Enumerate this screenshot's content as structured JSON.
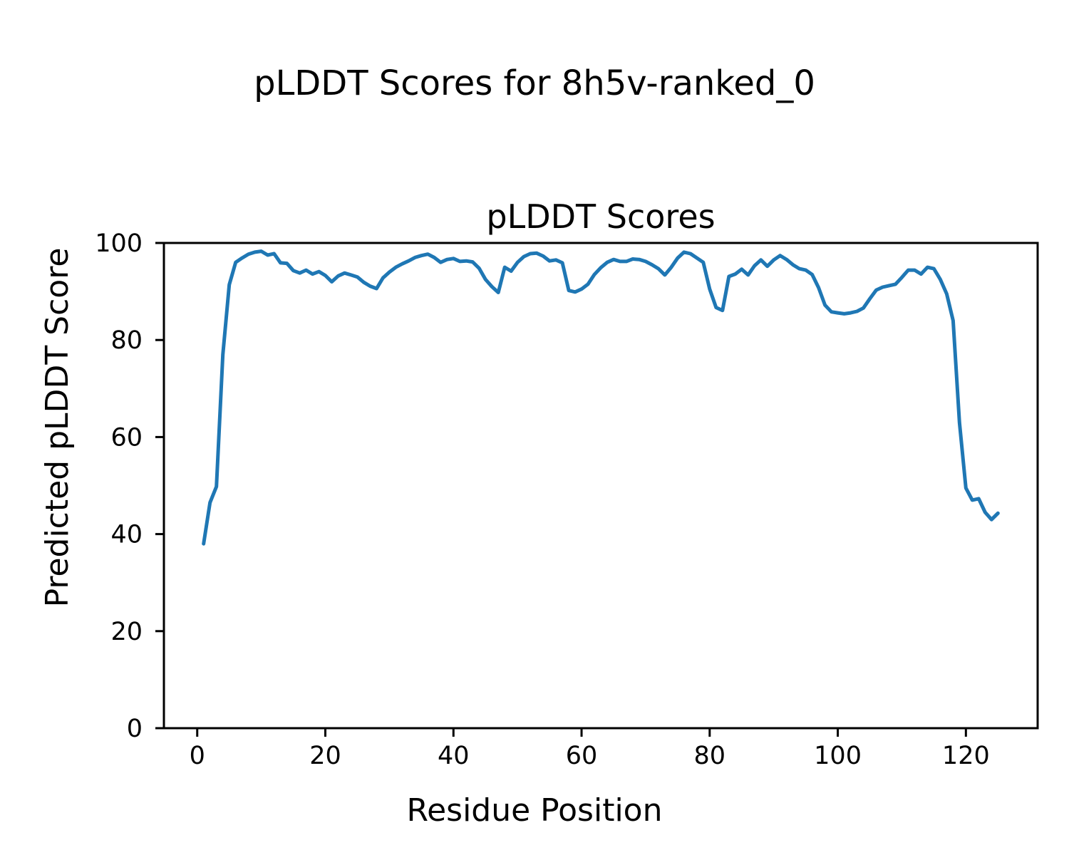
{
  "figure": {
    "suptitle": "pLDDT Scores for 8h5v-ranked_0",
    "background_color": "#ffffff",
    "text_color": "#000000"
  },
  "chart_data": {
    "type": "line",
    "title": "pLDDT Scores",
    "xlabel": "Residue Position",
    "ylabel": "Predicted pLDDT Score",
    "xlim": [
      -5.2,
      131.2
    ],
    "ylim": [
      0,
      100
    ],
    "xticks": [
      0,
      20,
      40,
      60,
      80,
      100,
      120
    ],
    "yticks": [
      0,
      20,
      40,
      60,
      80,
      100
    ],
    "grid": false,
    "legend_position": "none",
    "line_color": "#1f77b4",
    "line_width": 5,
    "frame_color": "#000000",
    "series": [
      {
        "name": "pLDDT",
        "residue_start": 1,
        "values": [
          38.0,
          46.5,
          49.8,
          77.0,
          91.4,
          96.0,
          96.9,
          97.7,
          98.1,
          98.3,
          97.5,
          97.8,
          95.9,
          95.8,
          94.3,
          93.8,
          94.4,
          93.6,
          94.1,
          93.3,
          92.0,
          93.2,
          93.8,
          93.4,
          93.0,
          91.9,
          91.1,
          90.6,
          92.8,
          94.0,
          95.0,
          95.7,
          96.3,
          97.0,
          97.4,
          97.7,
          97.0,
          96.0,
          96.6,
          96.8,
          96.2,
          96.3,
          96.1,
          94.8,
          92.5,
          91.0,
          89.8,
          95.0,
          94.2,
          96.0,
          97.2,
          97.8,
          97.9,
          97.3,
          96.3,
          96.5,
          95.9,
          90.2,
          89.9,
          90.5,
          91.5,
          93.5,
          94.9,
          96.0,
          96.6,
          96.2,
          96.2,
          96.7,
          96.6,
          96.2,
          95.5,
          94.7,
          93.4,
          95.0,
          96.9,
          98.1,
          97.8,
          96.9,
          96.0,
          90.5,
          86.7,
          86.1,
          93.1,
          93.6,
          94.6,
          93.4,
          95.3,
          96.5,
          95.2,
          96.5,
          97.4,
          96.6,
          95.5,
          94.7,
          94.4,
          93.5,
          90.8,
          87.2,
          85.8,
          85.6,
          85.4,
          85.6,
          85.9,
          86.6,
          88.5,
          90.3,
          90.9,
          91.2,
          91.5,
          92.9,
          94.4,
          94.4,
          93.6,
          95.0,
          94.7,
          92.5,
          89.5,
          84.0,
          63.0,
          49.5,
          47.0,
          47.3,
          44.5,
          43.0,
          44.3
        ]
      }
    ]
  }
}
